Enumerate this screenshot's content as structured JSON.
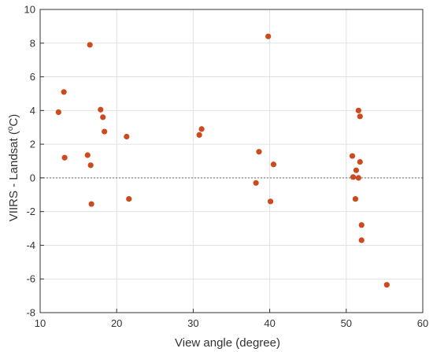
{
  "chart_data": {
    "type": "scatter",
    "title": "",
    "xlabel": "View angle (degree)",
    "ylabel_prefix": "VIIRS - Landsat (",
    "ylabel_super": "o",
    "ylabel_suffix": "C)",
    "xlim": [
      10,
      60
    ],
    "ylim": [
      -8,
      10
    ],
    "xticks": [
      10,
      20,
      30,
      40,
      50,
      60
    ],
    "yticks": [
      -8,
      -6,
      -4,
      -2,
      0,
      2,
      4,
      6,
      8,
      10
    ],
    "grid": true,
    "reference_line": {
      "y": 0,
      "style": "dotted"
    },
    "colors": {
      "marker": "#cc4a1e",
      "grid": "#e2e2e2",
      "axis": "#333333",
      "reference": "#888888"
    },
    "series": [
      {
        "points": [
          {
            "x": 12.4,
            "y": 3.9
          },
          {
            "x": 13.1,
            "y": 5.1
          },
          {
            "x": 13.2,
            "y": 1.2
          },
          {
            "x": 16.2,
            "y": 1.35
          },
          {
            "x": 16.5,
            "y": 7.9
          },
          {
            "x": 16.6,
            "y": 0.75
          },
          {
            "x": 16.7,
            "y": -1.55
          },
          {
            "x": 17.9,
            "y": 4.05
          },
          {
            "x": 18.2,
            "y": 3.6
          },
          {
            "x": 18.4,
            "y": 2.75
          },
          {
            "x": 21.3,
            "y": 2.45
          },
          {
            "x": 21.6,
            "y": -1.25
          },
          {
            "x": 30.8,
            "y": 2.55
          },
          {
            "x": 31.1,
            "y": 2.9
          },
          {
            "x": 38.2,
            "y": -0.3
          },
          {
            "x": 38.6,
            "y": 1.55
          },
          {
            "x": 39.8,
            "y": 8.4
          },
          {
            "x": 40.1,
            "y": -1.4
          },
          {
            "x": 40.5,
            "y": 0.8
          },
          {
            "x": 50.8,
            "y": 1.3
          },
          {
            "x": 50.9,
            "y": 0.05
          },
          {
            "x": 51.2,
            "y": -1.25
          },
          {
            "x": 51.3,
            "y": 0.45
          },
          {
            "x": 51.6,
            "y": 0.0
          },
          {
            "x": 51.6,
            "y": 4.0
          },
          {
            "x": 51.8,
            "y": 3.65
          },
          {
            "x": 51.8,
            "y": 0.95
          },
          {
            "x": 52.0,
            "y": -2.8
          },
          {
            "x": 52.0,
            "y": -3.7
          },
          {
            "x": 55.3,
            "y": -6.35
          }
        ]
      }
    ]
  }
}
